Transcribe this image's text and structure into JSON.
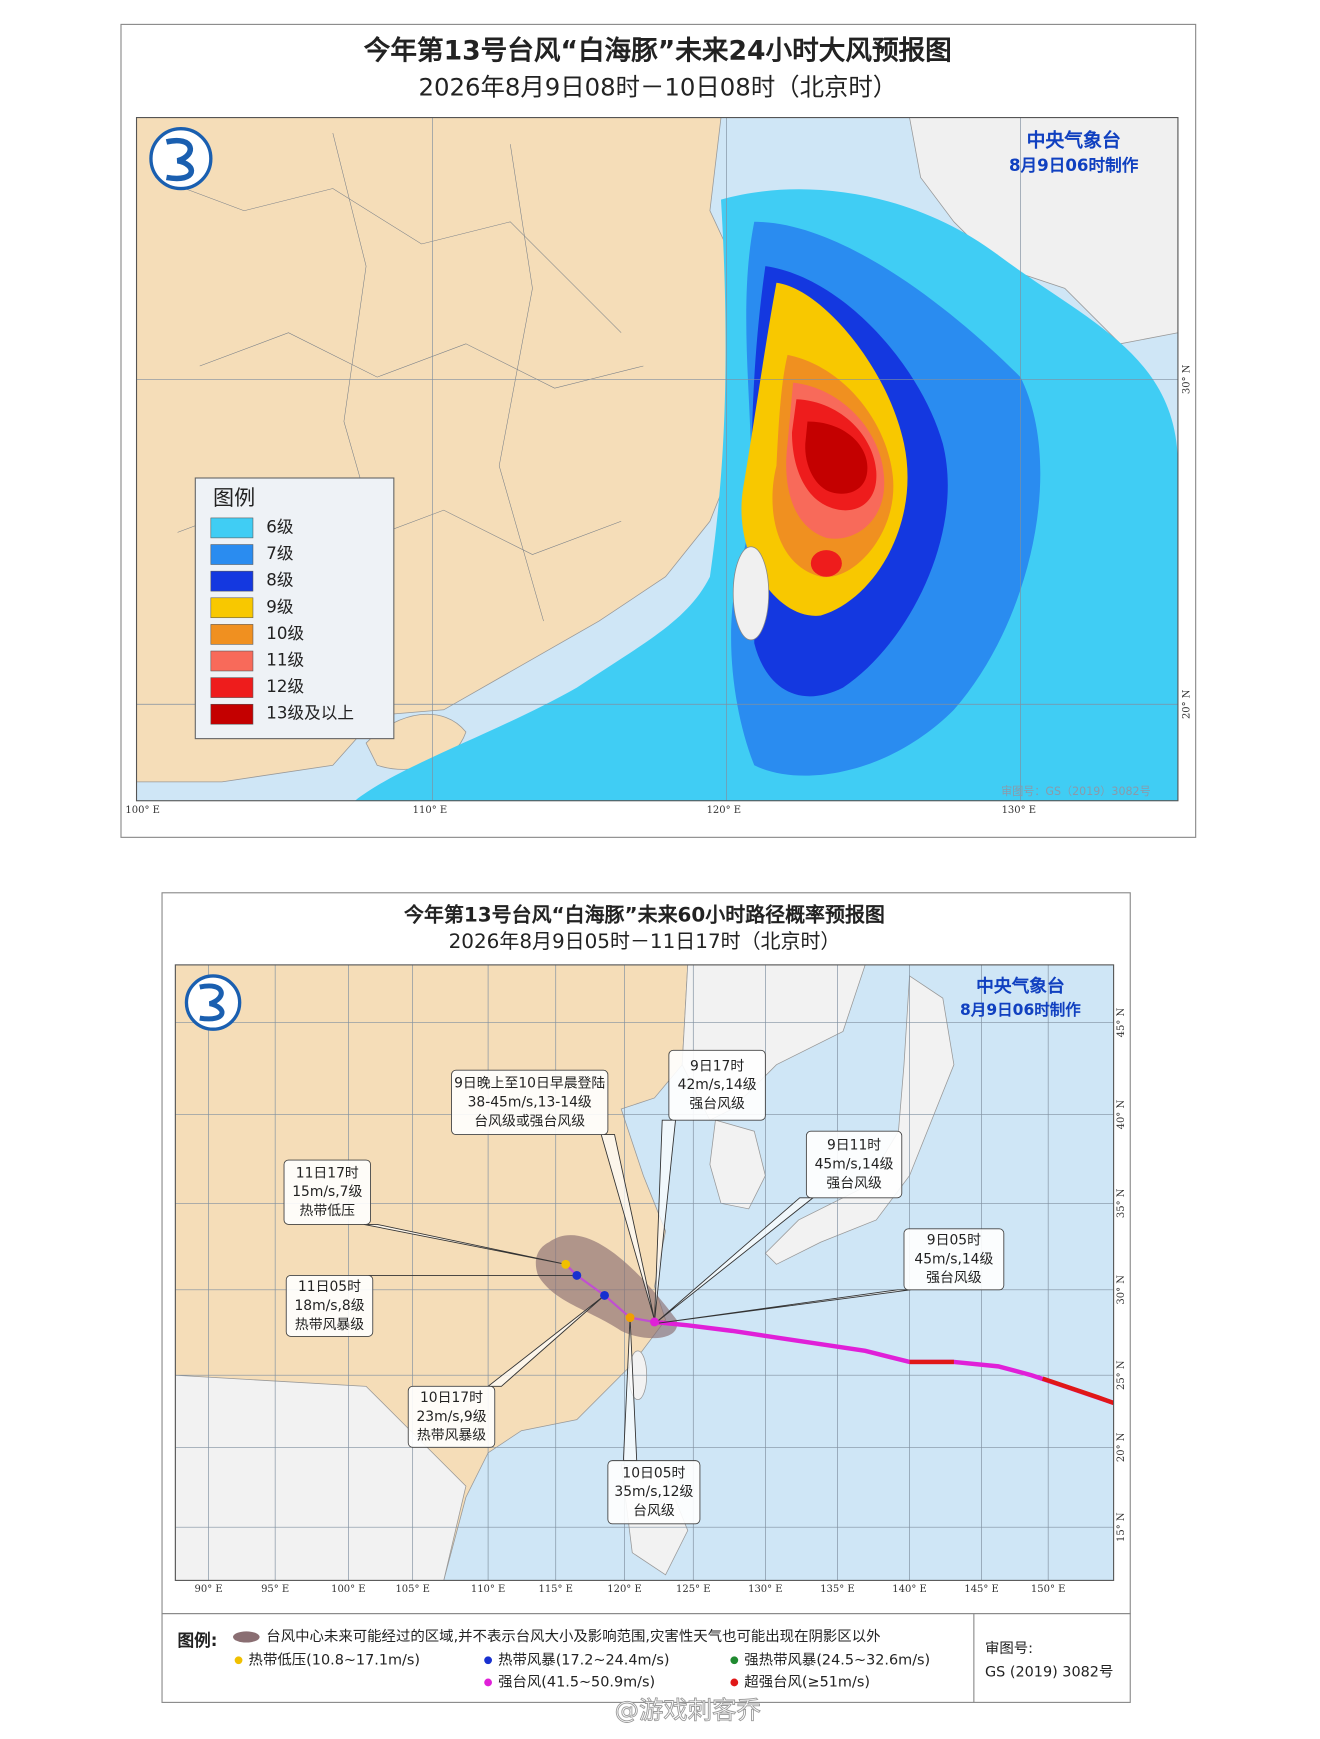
{
  "map1": {
    "title": "今年第13号台风“白海豚”未来24小时大风预报图",
    "subtitle": "2026年8月9日08时－10日08时（北京时）",
    "agency": "中央气象台",
    "issued": "8月9日06时制作",
    "legend_title": "图例",
    "legend": [
      {
        "label": "6级",
        "color": "#40cdf4"
      },
      {
        "label": "7级",
        "color": "#2a8cf0"
      },
      {
        "label": "8级",
        "color": "#1438e0"
      },
      {
        "label": "9级",
        "color": "#f8c800"
      },
      {
        "label": "10级",
        "color": "#f09020"
      },
      {
        "label": "11级",
        "color": "#f86a5a"
      },
      {
        "label": "12级",
        "color": "#ee1c1c"
      },
      {
        "label": "13级及以上",
        "color": "#c40000"
      }
    ],
    "lon_labels": [
      "100° E",
      "110° E",
      "120° E",
      "130° E"
    ],
    "lat_labels": [
      "30° N",
      "20° N"
    ],
    "watermark": "审图号：GS（2019）3082号"
  },
  "map2": {
    "title": "今年第13号台风“白海豚”未来60小时路径概率预报图",
    "subtitle": "2026年8月9日05时－11日17时（北京时）",
    "agency": "中央气象台",
    "issued": "8月9日06时制作",
    "callouts": [
      {
        "lines": [
          "9日晚上至10日早晨登陆",
          "38-45m/s,13-14级",
          "台风级或强台风级"
        ]
      },
      {
        "lines": [
          "9日17时",
          "42m/s,14级",
          "强台风级"
        ]
      },
      {
        "lines": [
          "9日11时",
          "45m/s,14级",
          "强台风级"
        ]
      },
      {
        "lines": [
          "9日05时",
          "45m/s,14级",
          "强台风级"
        ]
      },
      {
        "lines": [
          "11日17时",
          "15m/s,7级",
          "热带低压"
        ]
      },
      {
        "lines": [
          "11日05时",
          "18m/s,8级",
          "热带风暴级"
        ]
      },
      {
        "lines": [
          "10日17时",
          "23m/s,9级",
          "热带风暴级"
        ]
      },
      {
        "lines": [
          "10日05时",
          "35m/s,12级",
          "台风级"
        ]
      }
    ],
    "lon_labels": [
      "90° E",
      "95° E",
      "100° E",
      "105° E",
      "110° E",
      "115° E",
      "120° E",
      "125° E",
      "130° E",
      "135° E",
      "140° E",
      "145° E",
      "150° E"
    ],
    "lat_labels": [
      "45° N",
      "40° N",
      "35° N",
      "30° N",
      "25° N",
      "20° N",
      "15° N"
    ],
    "legend_title": "图例:",
    "legend_note": "台风中心未来可能经过的区域,并不表示台风大小及影响范围,灾害性天气也可能出现在阴影区以外",
    "legend": [
      {
        "label": "热带低压(10.8~17.1m/s)",
        "color": "#f0c000"
      },
      {
        "label": "热带风暴(17.2~24.4m/s)",
        "color": "#1830d0"
      },
      {
        "label": "强热带风暴(24.5~32.6m/s)",
        "color": "#208a30"
      },
      {
        "label": "强台风(41.5~50.9m/s)",
        "color": "#e020d8"
      },
      {
        "label": "超强台风(≥51m/s)",
        "color": "#e01818"
      }
    ],
    "review": [
      "审图号:",
      "GS (2019) 3082号"
    ]
  },
  "watermark": "@游戏刺客乔"
}
